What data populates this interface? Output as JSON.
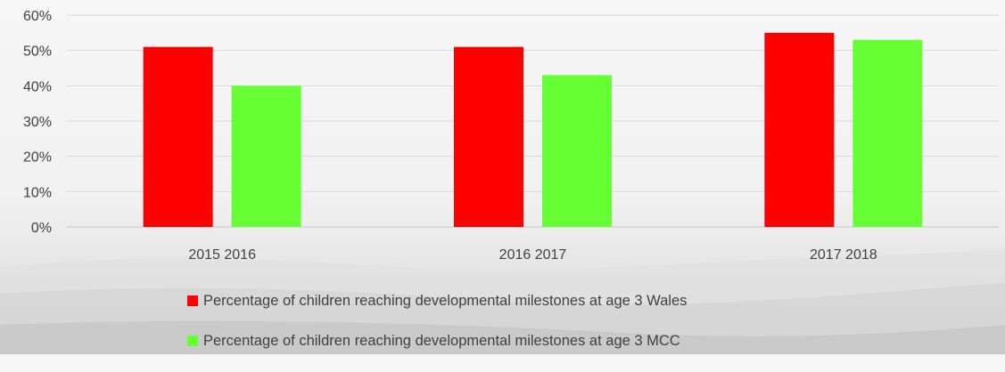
{
  "chart_data": {
    "type": "bar",
    "categories": [
      "2015 2016",
      "2016 2017",
      "2017 2018"
    ],
    "series": [
      {
        "name": "Percentage of children reaching developmental milestones at age 3 Wales",
        "values": [
          51,
          51,
          55
        ],
        "color": "#ff0000"
      },
      {
        "name": "Percentage of children reaching developmental milestones at age 3 MCC",
        "values": [
          40,
          43,
          53
        ],
        "color": "#66ff33"
      }
    ],
    "ylim": [
      0,
      60
    ],
    "yticks": [
      "0%",
      "10%",
      "20%",
      "30%",
      "40%",
      "50%",
      "60%"
    ],
    "grid": true,
    "legend_position": "bottom",
    "title": "",
    "xlabel": "",
    "ylabel": ""
  }
}
